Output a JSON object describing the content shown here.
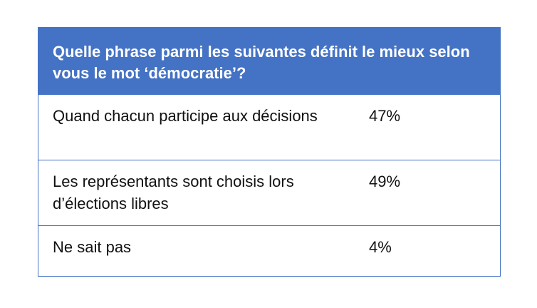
{
  "chart_data": {
    "type": "table",
    "question": "Quelle phrase parmi les suivantes définit le mieux selon vous le mot ‘démocratie’?",
    "rows": [
      {
        "answer": "Quand chacun participe aux décisions",
        "percent": "47%",
        "value": 47
      },
      {
        "answer": "Les représentants sont choisis lors d’élections libres",
        "percent": "49%",
        "value": 49
      },
      {
        "answer": "Ne sait pas",
        "percent": "4%",
        "value": 4
      }
    ],
    "colors": {
      "header_background": "#4472c4",
      "header_text": "#ffffff",
      "border": "#4472c4",
      "body_text": "#111111"
    }
  }
}
